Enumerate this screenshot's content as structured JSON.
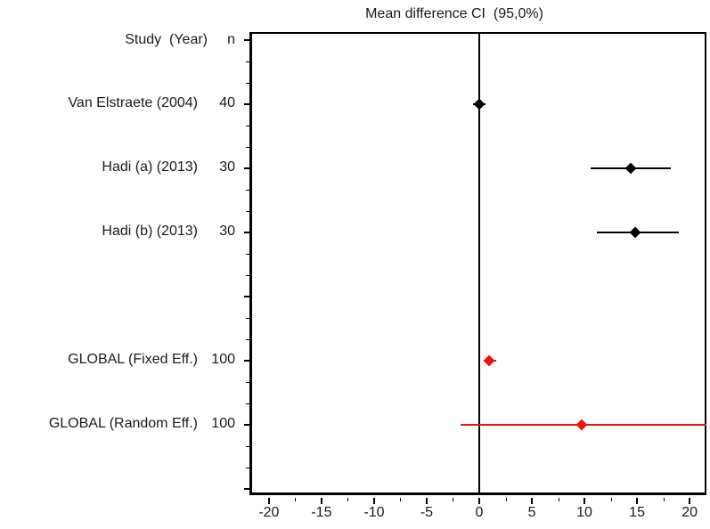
{
  "title": "Mean difference CI  (95,0%)",
  "header": {
    "study_label": "Study  (Year)",
    "n_label": "n"
  },
  "chart_data": {
    "type": "forest",
    "title": "Mean difference CI  (95,0%)",
    "xlabel": "Mean difference",
    "xlim": [
      -21.6,
      21.6
    ],
    "x_major_ticks": [
      -20,
      -15,
      -10,
      -5,
      0,
      5,
      10,
      15,
      20
    ],
    "x_minor_tick_step": 2.5,
    "zero_line_x": 0,
    "grid": false,
    "n_grid_rows": 8,
    "colors": {
      "study": "#000000",
      "global": "#ee1111",
      "frame": "#000000",
      "text": "#1a1a1a"
    },
    "rows": [
      {
        "label": "Van Elstraete (2004)",
        "n": 40,
        "mean": 0.0,
        "ci_low": -0.6,
        "ci_high": 0.6,
        "type": "study",
        "grid_row": 1
      },
      {
        "label": "Hadi (a) (2013)",
        "n": 30,
        "mean": 14.4,
        "ci_low": 10.6,
        "ci_high": 18.2,
        "type": "study",
        "grid_row": 2
      },
      {
        "label": "Hadi (b) (2013)",
        "n": 30,
        "mean": 14.8,
        "ci_low": 11.2,
        "ci_high": 19.0,
        "type": "study",
        "grid_row": 3
      },
      {
        "label": "GLOBAL (Fixed Eff.)",
        "n": 100,
        "mean": 0.9,
        "ci_low": 0.4,
        "ci_high": 1.6,
        "type": "global",
        "grid_row": 5
      },
      {
        "label": "GLOBAL (Random Eff.)",
        "n": 100,
        "mean": 9.7,
        "ci_low": -1.8,
        "ci_high": 21.6,
        "type": "global",
        "grid_row": 6
      }
    ]
  }
}
